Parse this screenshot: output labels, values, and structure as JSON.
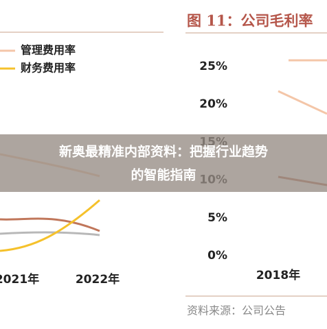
{
  "left_chart": {
    "legend": [
      "管理费用率",
      "财务费用率"
    ],
    "x_labels": [
      "2021年",
      "2022年"
    ]
  },
  "right_chart": {
    "title": "图 11：公司毛利率",
    "yticks": [
      {
        "value": 0,
        "label": "0%"
      },
      {
        "value": 5,
        "label": "5%"
      },
      {
        "value": 10,
        "label": "10%"
      },
      {
        "value": 15,
        "label": "15%"
      },
      {
        "value": 20,
        "label": "20%"
      },
      {
        "value": 25,
        "label": "25%"
      }
    ],
    "ylim": [
      0,
      25
    ],
    "x_labels": [
      "2018年"
    ],
    "source": "资料来源：公司公告"
  },
  "banner": {
    "line1": "新奥最精准内部资料：把握行业趋势",
    "line2": "的智能指南"
  }
}
